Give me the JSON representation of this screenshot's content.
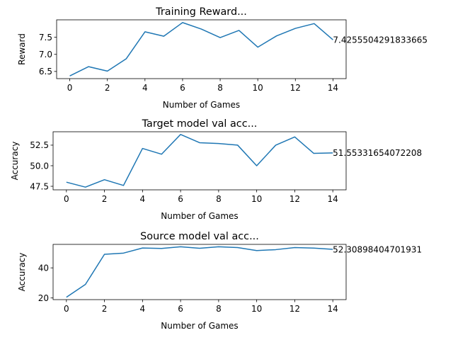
{
  "chart_data": [
    {
      "type": "line",
      "title": "Training Reward...",
      "xlabel": "Number of Games",
      "ylabel": "Reward",
      "x": [
        0,
        1,
        2,
        3,
        4,
        5,
        6,
        7,
        8,
        9,
        10,
        11,
        12,
        13,
        14
      ],
      "series": [
        {
          "values": [
            6.37,
            6.64,
            6.51,
            6.87,
            7.66,
            7.53,
            7.93,
            7.74,
            7.49,
            7.7,
            7.21,
            7.54,
            7.76,
            7.9,
            7.4255504291833665
          ],
          "color": "#1f77b4"
        }
      ],
      "annotation": "7.4255504291833665",
      "xticks": [
        "0",
        "2",
        "4",
        "6",
        "8",
        "10",
        "12",
        "14"
      ],
      "xtick_values": [
        0,
        2,
        4,
        6,
        8,
        10,
        12,
        14
      ],
      "yticks": [
        "6.5",
        "7.0",
        "7.5"
      ],
      "ytick_values": [
        6.5,
        7.0,
        7.5
      ],
      "xlim": [
        -0.7,
        14.7
      ],
      "ylim": [
        6.29,
        8.01
      ],
      "grid": false
    },
    {
      "type": "line",
      "title": "Target model val acc...",
      "xlabel": "Number of Games",
      "ylabel": "Accuracy",
      "x": [
        0,
        1,
        2,
        3,
        4,
        5,
        6,
        7,
        8,
        9,
        10,
        11,
        12,
        13,
        14
      ],
      "series": [
        {
          "values": [
            48.0,
            47.4,
            48.3,
            47.6,
            52.1,
            51.4,
            53.8,
            52.8,
            52.7,
            52.5,
            50.0,
            52.5,
            53.5,
            51.5,
            51.55331654072208
          ],
          "color": "#1f77b4"
        }
      ],
      "annotation": "51.55331654072208",
      "xticks": [
        "0",
        "2",
        "4",
        "6",
        "8",
        "10",
        "12",
        "14"
      ],
      "xtick_values": [
        0,
        2,
        4,
        6,
        8,
        10,
        12,
        14
      ],
      "yticks": [
        "47.5",
        "50.0",
        "52.5"
      ],
      "ytick_values": [
        47.5,
        50.0,
        52.5
      ],
      "xlim": [
        -0.7,
        14.7
      ],
      "ylim": [
        47.07,
        54.13
      ],
      "grid": false
    },
    {
      "type": "line",
      "title": "Source model val acc...",
      "xlabel": "Number of Games",
      "ylabel": "Accuracy",
      "x": [
        0,
        1,
        2,
        3,
        4,
        5,
        6,
        7,
        8,
        9,
        10,
        11,
        12,
        13,
        14
      ],
      "series": [
        {
          "values": [
            20.5,
            29.0,
            49.0,
            49.8,
            53.2,
            52.9,
            54.0,
            53.0,
            54.0,
            53.5,
            51.5,
            52.1,
            53.5,
            53.1,
            52.30898404701931
          ],
          "color": "#1f77b4"
        }
      ],
      "annotation": "52.30898404701931",
      "xticks": [
        "0",
        "2",
        "4",
        "6",
        "8",
        "10",
        "12",
        "14"
      ],
      "xtick_values": [
        0,
        2,
        4,
        6,
        8,
        10,
        12,
        14
      ],
      "yticks": [
        "20",
        "40"
      ],
      "ytick_values": [
        20,
        40
      ],
      "xlim": [
        -0.7,
        14.7
      ],
      "ylim": [
        18.9,
        55.6
      ],
      "grid": false
    }
  ]
}
